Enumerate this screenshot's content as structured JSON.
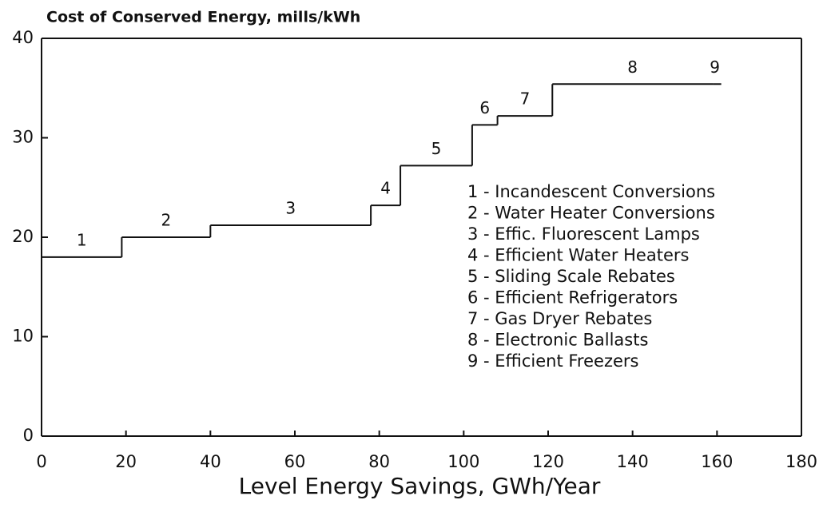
{
  "chart_data": {
    "type": "step",
    "title": "Cost of Conserved Energy, mills/kWh",
    "x_label": "Level Energy Savings, GWh/Year",
    "step_labels": [
      "1",
      "2",
      "3",
      "4",
      "5",
      "6",
      "7",
      "8",
      "9"
    ],
    "x_start": [
      0,
      19,
      40,
      78,
      85,
      102,
      108,
      121,
      159
    ],
    "x_end": [
      19,
      40,
      78,
      85,
      102,
      108,
      121,
      159,
      161
    ],
    "values": [
      18,
      20,
      21.2,
      23.2,
      27.2,
      31.3,
      32.2,
      35.4,
      35.4
    ],
    "color": "#111111",
    "xlim": [
      0,
      180
    ],
    "xticks": [
      0,
      20,
      40,
      60,
      80,
      100,
      120,
      140,
      160,
      180
    ],
    "ylim": [
      0,
      40
    ],
    "yticks": [
      0,
      10,
      20,
      30,
      40
    ],
    "legend": [
      "1 - Incandescent Conversions",
      "2 - Water Heater Conversions",
      "3 - Effic. Fluorescent Lamps",
      "4 - Efficient Water Heaters",
      "5 - Sliding Scale Rebates",
      "6 - Efficient Refrigerators",
      "7 - Gas Dryer Rebates",
      "8 - Electronic Ballasts",
      "9 - Efficient Freezers"
    ]
  }
}
